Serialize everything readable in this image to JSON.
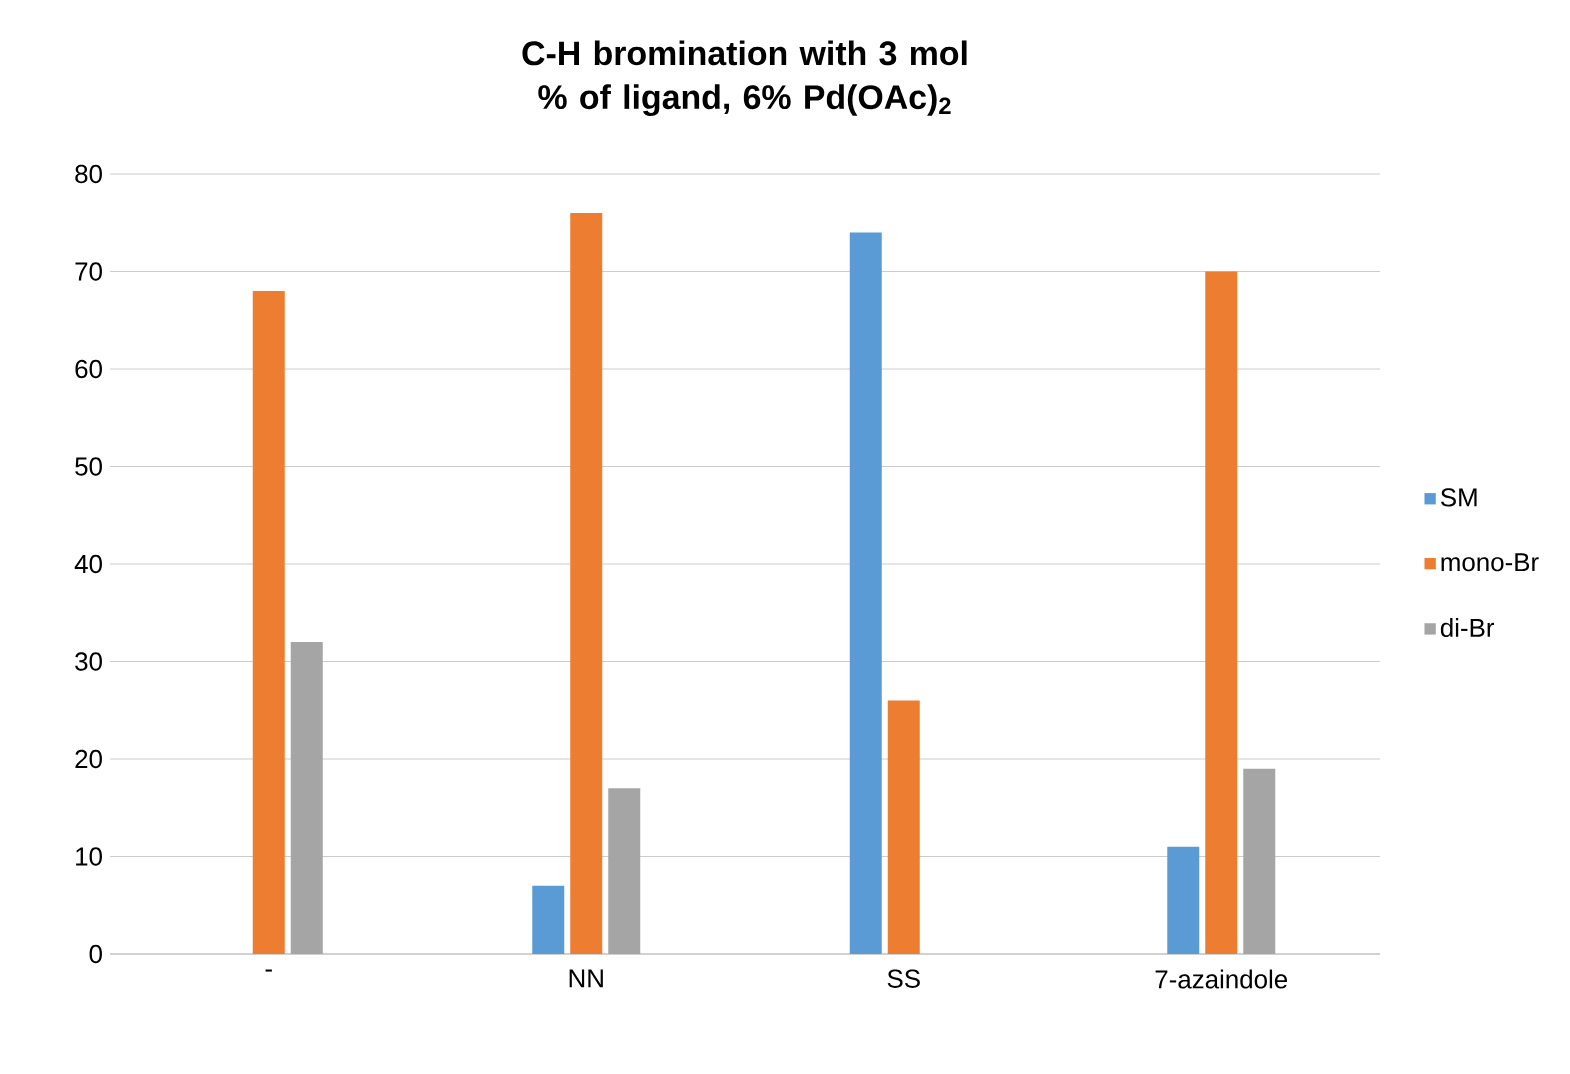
{
  "chart_data": {
    "type": "bar",
    "title": "C-H bromination with 3 mol % of ligand, 6% Pd(OAc)$_{2}$",
    "categories": [
      "-",
      "NN",
      "SS",
      "7-azaindole"
    ],
    "series": [
      {
        "name": "SM",
        "color": "#5b9bd5",
        "values": [
          0,
          7,
          74,
          11
        ]
      },
      {
        "name": "mono-Br",
        "color": "#ed7d31",
        "values": [
          68,
          76,
          26,
          70
        ]
      },
      {
        "name": "di-Br",
        "color": "#a5a5a5",
        "values": [
          32,
          17,
          0,
          19
        ]
      }
    ],
    "ylim": [
      0,
      80
    ],
    "yticks": [
      0,
      10,
      20,
      30,
      40,
      50,
      60,
      70,
      80
    ],
    "grid": "y",
    "legend": "right"
  }
}
